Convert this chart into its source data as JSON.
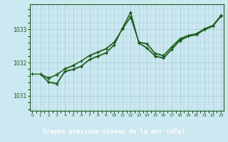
{
  "title": "Graphe pression niveau de la mer (hPa)",
  "background_color": "#cce8f0",
  "grid_color": "#aaccd8",
  "line_color": "#1a5c1a",
  "title_bg": "#1a5c1a",
  "title_fg": "#ffffff",
  "x_ticks": [
    0,
    1,
    2,
    3,
    4,
    5,
    6,
    7,
    8,
    9,
    10,
    11,
    12,
    13,
    14,
    15,
    16,
    17,
    18,
    19,
    20,
    21,
    22,
    23
  ],
  "y_ticks": [
    1031,
    1032,
    1033
  ],
  "ylim": [
    1030.55,
    1033.75
  ],
  "xlim": [
    -0.3,
    23.3
  ],
  "series": [
    [
      1031.65,
      1031.65,
      1031.5,
      1031.65,
      1031.8,
      1031.9,
      1032.05,
      1032.2,
      1032.3,
      1032.4,
      1032.6,
      1033.0,
      1033.35,
      1032.6,
      1032.55,
      1032.25,
      1032.2,
      1032.45,
      1032.7,
      1032.8,
      1032.85,
      1033.0,
      1033.1,
      1033.4
    ],
    [
      1031.65,
      1031.65,
      1031.4,
      1031.35,
      1031.72,
      1031.78,
      1031.88,
      1032.08,
      1032.18,
      1032.28,
      1032.52,
      1033.02,
      1033.5,
      1032.58,
      1032.42,
      1032.18,
      1032.12,
      1032.38,
      1032.65,
      1032.78,
      1032.83,
      1032.98,
      1033.08,
      1033.38
    ],
    [
      1031.65,
      1031.65,
      1031.55,
      1031.62,
      1031.82,
      1031.92,
      1032.05,
      1032.22,
      1032.32,
      1032.42,
      1032.62,
      1033.02,
      1033.38,
      1032.62,
      1032.57,
      1032.28,
      1032.22,
      1032.48,
      1032.72,
      1032.82,
      1032.87,
      1033.02,
      1033.12,
      1033.42
    ],
    [
      1031.65,
      1031.65,
      1031.42,
      1031.38,
      1031.75,
      1031.8,
      1031.9,
      1032.1,
      1032.2,
      1032.3,
      1032.54,
      1033.04,
      1033.52,
      1032.6,
      1032.44,
      1032.2,
      1032.14,
      1032.4,
      1032.67,
      1032.8,
      1032.85,
      1033.0,
      1033.1,
      1033.4
    ]
  ]
}
